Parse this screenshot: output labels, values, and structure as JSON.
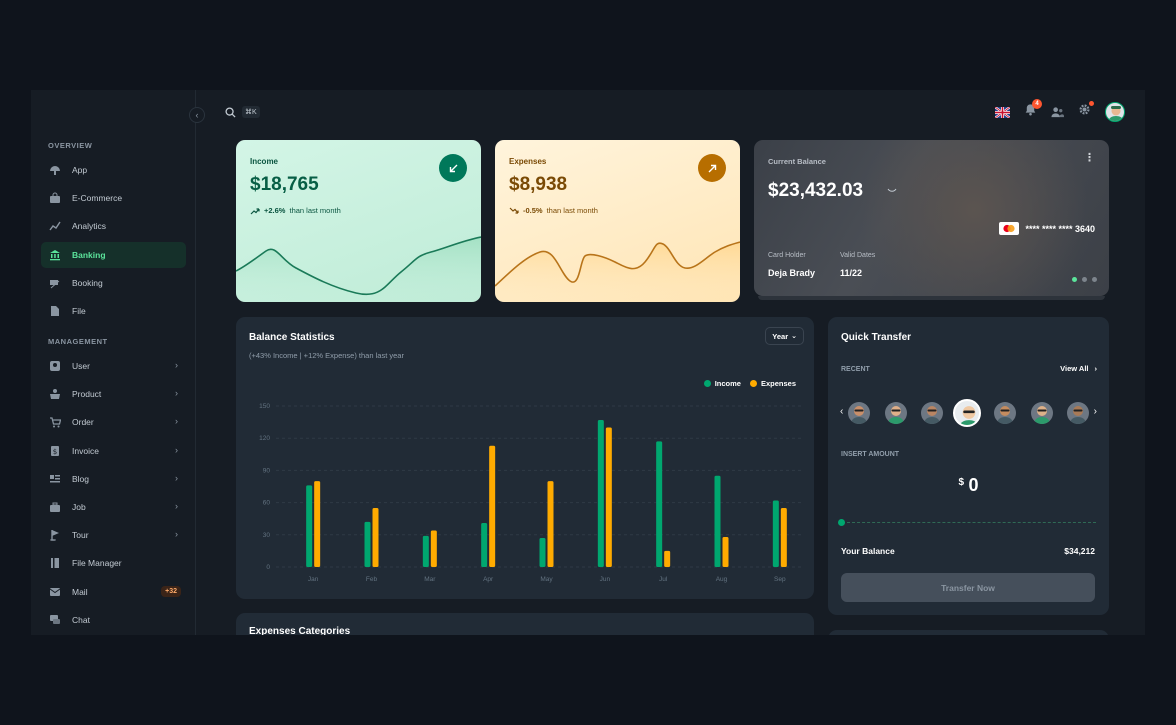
{
  "sidebar": {
    "overview_title": "OVERVIEW",
    "management_title": "MANAGEMENT",
    "overview_items": [
      {
        "label": "App",
        "icon": "app-icon"
      },
      {
        "label": "E-Commerce",
        "icon": "ecommerce-icon"
      },
      {
        "label": "Analytics",
        "icon": "analytics-icon"
      },
      {
        "label": "Banking",
        "icon": "banking-icon",
        "active": true
      },
      {
        "label": "Booking",
        "icon": "booking-icon"
      },
      {
        "label": "File",
        "icon": "file-icon"
      }
    ],
    "management_items": [
      {
        "label": "User",
        "icon": "user-icon"
      },
      {
        "label": "Product",
        "icon": "product-icon"
      },
      {
        "label": "Order",
        "icon": "order-icon"
      },
      {
        "label": "Invoice",
        "icon": "invoice-icon"
      },
      {
        "label": "Blog",
        "icon": "blog-icon"
      },
      {
        "label": "Job",
        "icon": "job-icon"
      },
      {
        "label": "Tour",
        "icon": "tour-icon"
      },
      {
        "label": "File Manager",
        "icon": "folder-icon"
      },
      {
        "label": "Mail",
        "icon": "mail-icon",
        "badge": "+32"
      },
      {
        "label": "Chat",
        "icon": "chat-icon"
      }
    ]
  },
  "topbar": {
    "shortcut": "⌘K",
    "notification_count": "4"
  },
  "income": {
    "label": "Income",
    "amount": "$18,765",
    "change": "+2.6%",
    "change_text": "than last month"
  },
  "expenses": {
    "label": "Expenses",
    "amount": "$8,938",
    "change": "-0.5%",
    "change_text": "than last month"
  },
  "balance_card": {
    "title": "Current Balance",
    "amount": "$23,432.03",
    "card_number": "**** **** **** 3640",
    "holder_label": "Card Holder",
    "holder": "Deja Brady",
    "valid_label": "Valid Dates",
    "valid": "11/22"
  },
  "balance_stats": {
    "title": "Balance Statistics",
    "subtitle": "(+43% Income | +12% Expense) than last year",
    "period": "Year"
  },
  "chart_data": {
    "type": "bar",
    "categories": [
      "Jan",
      "Feb",
      "Mar",
      "Apr",
      "May",
      "Jun",
      "Jul",
      "Aug",
      "Sep"
    ],
    "series": [
      {
        "name": "Income",
        "color": "#00a76f",
        "values": [
          76,
          42,
          29,
          41,
          27,
          137,
          117,
          85,
          62
        ]
      },
      {
        "name": "Expenses",
        "color": "#ffab00",
        "values": [
          80,
          55,
          34,
          113,
          80,
          130,
          15,
          28,
          55
        ]
      }
    ],
    "ylim": [
      0,
      150
    ],
    "yticks": [
      0,
      30,
      60,
      90,
      120,
      150
    ],
    "legend": "top-right",
    "grid": true
  },
  "quick_transfer": {
    "title": "Quick Transfer",
    "recent_label": "RECENT",
    "view_all": "View All",
    "insert_label": "INSERT AMOUNT",
    "currency": "$",
    "amount": "0",
    "balance_label": "Your Balance",
    "balance": "$34,212",
    "button": "Transfer Now"
  },
  "expenses_categories": {
    "title": "Expenses Categories"
  }
}
